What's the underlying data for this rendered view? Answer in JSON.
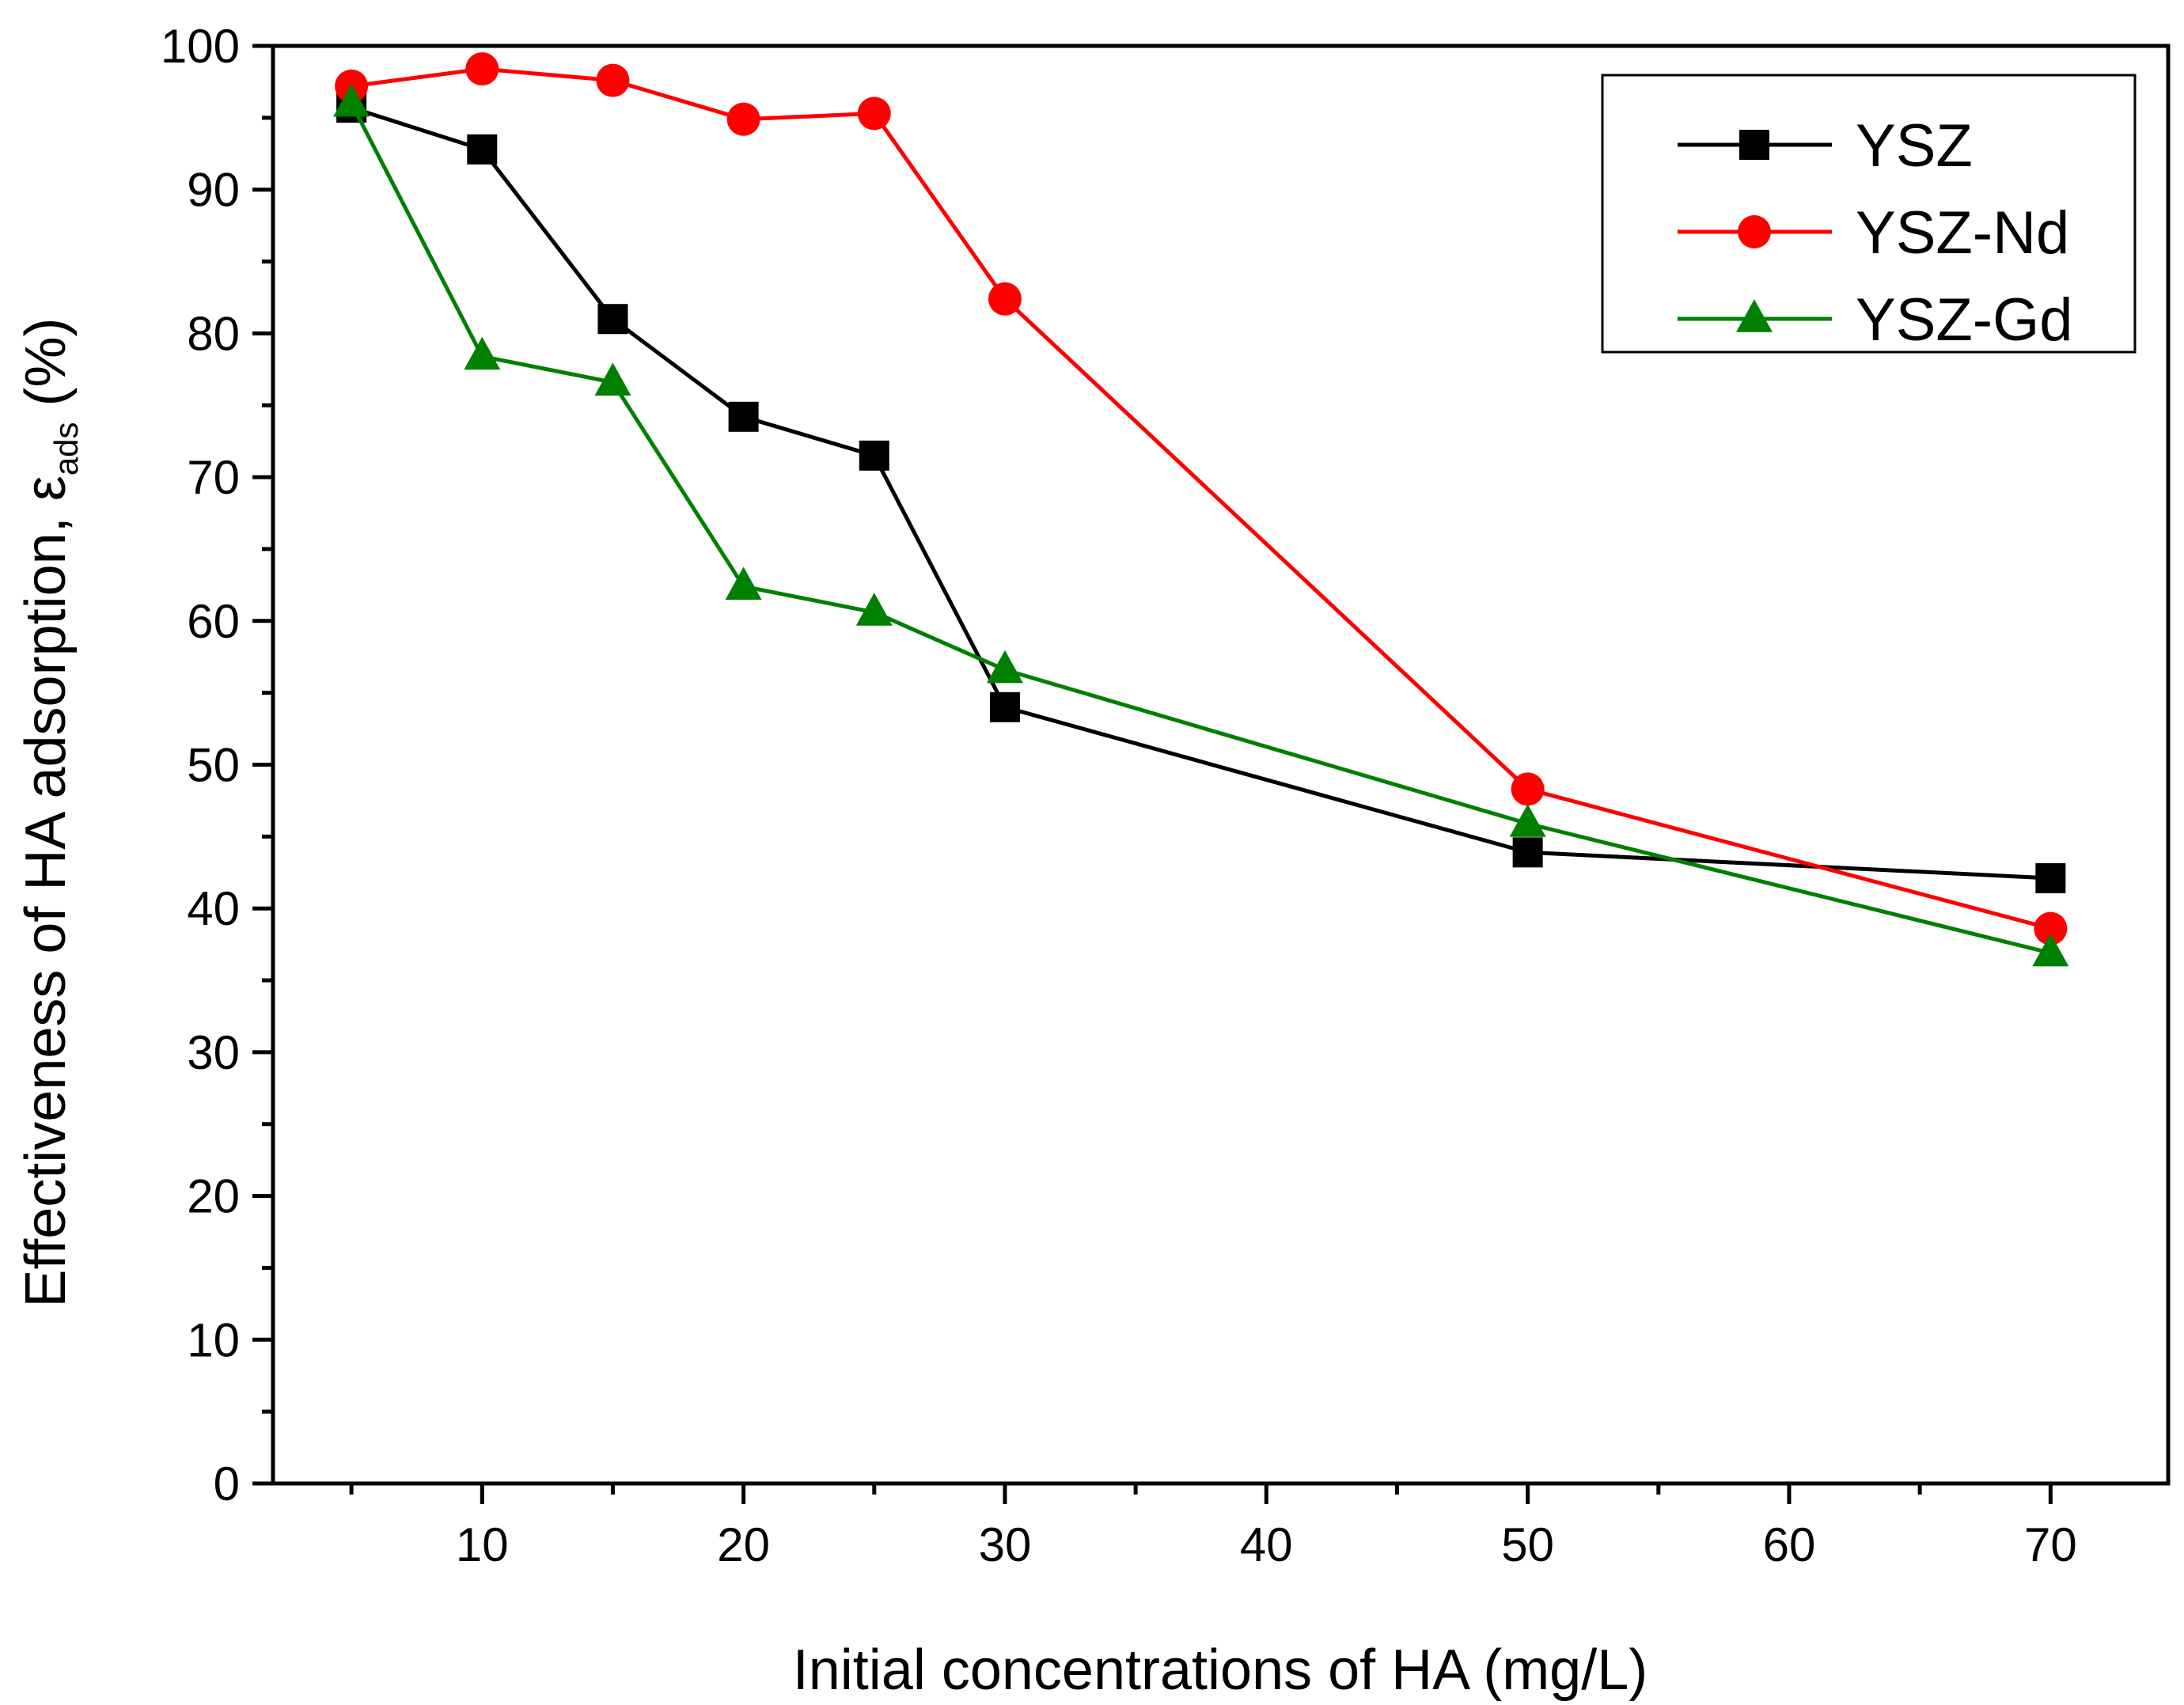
{
  "chart_data": {
    "type": "line",
    "xlabel": "Initial concentrations of HA (mg/L)",
    "ylabel": {
      "main": "Effectiveness of HA adsorption, ",
      "symbol": "ε",
      "subscript": "ads",
      "unit": " (%)"
    },
    "xlim": [
      2,
      74.5
    ],
    "ylim": [
      0,
      100
    ],
    "x_ticks": [
      10,
      20,
      30,
      40,
      50,
      60,
      70
    ],
    "x_tick_labels": [
      "10",
      "20",
      "30",
      "40",
      "50",
      "60",
      "70"
    ],
    "x_minor_ticks": [
      5,
      15,
      25,
      35,
      45,
      55,
      65
    ],
    "y_ticks": [
      0,
      10,
      20,
      30,
      40,
      50,
      60,
      70,
      80,
      90,
      100
    ],
    "y_tick_labels": [
      "0",
      "10",
      "20",
      "30",
      "40",
      "50",
      "60",
      "70",
      "80",
      "90",
      "100"
    ],
    "y_minor_ticks": [
      5,
      15,
      25,
      35,
      45,
      55,
      65,
      75,
      85,
      95
    ],
    "grid": false,
    "legend_position": "top-right",
    "x": [
      5,
      10,
      15,
      20,
      25,
      30,
      50,
      70
    ],
    "series": [
      {
        "name": "YSZ",
        "color": "#000000",
        "marker": "square",
        "values": [
          95.7,
          92.8,
          81.0,
          74.2,
          71.5,
          54.0,
          43.9,
          42.1
        ]
      },
      {
        "name": "YSZ-Nd",
        "color": "#ff0000",
        "marker": "circle",
        "values": [
          97.2,
          98.4,
          97.6,
          94.9,
          95.3,
          82.4,
          48.3,
          38.6
        ]
      },
      {
        "name": "YSZ-Gd",
        "color": "#008000",
        "marker": "triangle",
        "values": [
          96.0,
          78.4,
          76.6,
          62.4,
          60.6,
          56.6,
          45.9,
          36.9
        ]
      }
    ]
  }
}
